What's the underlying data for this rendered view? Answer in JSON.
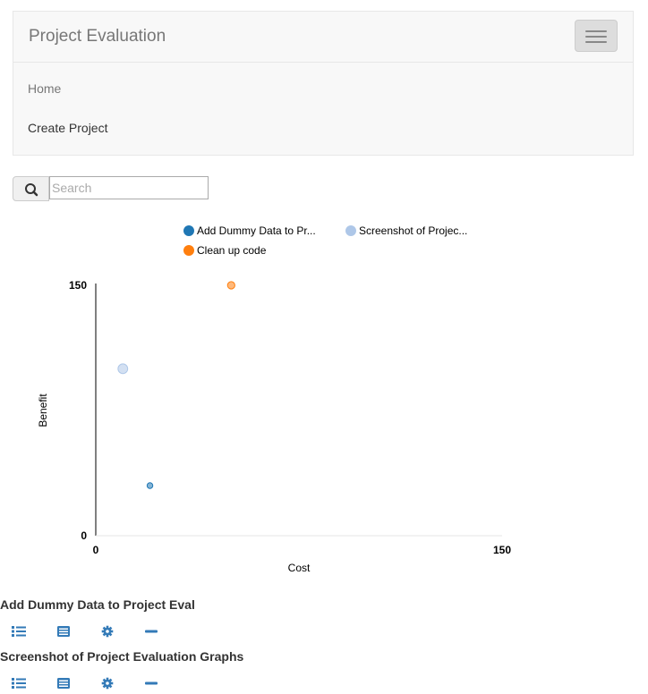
{
  "app": {
    "brand": "Project Evaluation"
  },
  "nav": {
    "items": [
      {
        "label": "Home"
      },
      {
        "label": "Create Project"
      }
    ]
  },
  "search": {
    "placeholder": "Search"
  },
  "colors": {
    "accent": "#337ab7",
    "series1": "#1f77b4",
    "series2": "#aec7e8",
    "series3": "#ff7f0e"
  },
  "chart_data": {
    "type": "scatter",
    "xlabel": "Cost",
    "ylabel": "Benefit",
    "xlim": [
      0,
      150
    ],
    "ylim": [
      0,
      150
    ],
    "x_ticks": [
      "0",
      "150"
    ],
    "y_ticks": [
      "0",
      "150"
    ],
    "legend_position": "top",
    "series": [
      {
        "name": "Add Dummy Data to Pr...",
        "color": "#1f77b4",
        "points": [
          {
            "x": 20,
            "y": 30,
            "size": 1
          }
        ]
      },
      {
        "name": "Screenshot of Projec...",
        "color": "#aec7e8",
        "points": [
          {
            "x": 10,
            "y": 100,
            "size": 4
          }
        ]
      },
      {
        "name": "Clean up code",
        "color": "#ff7f0e",
        "points": [
          {
            "x": 50,
            "y": 150,
            "size": 2
          }
        ]
      }
    ]
  },
  "projects": [
    {
      "title": "Add Dummy Data to Project Eval",
      "icons": [
        "list-icon",
        "details-icon",
        "gear-icon",
        "minus-icon"
      ]
    },
    {
      "title": "Screenshot of Project Evaluation Graphs",
      "icons": [
        "list-icon",
        "details-icon",
        "gear-icon",
        "minus-icon"
      ]
    }
  ]
}
